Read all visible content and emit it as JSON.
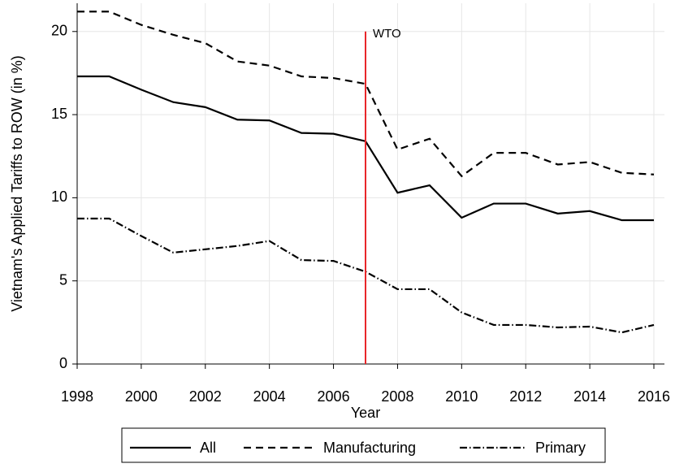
{
  "chart_data": {
    "type": "line",
    "x_label": "Year",
    "y_label": "Vietnam's Applied Tariffs to ROW (in %)",
    "x": [
      1998,
      1999,
      2000,
      2001,
      2002,
      2003,
      2004,
      2005,
      2006,
      2007,
      2008,
      2009,
      2010,
      2011,
      2012,
      2013,
      2014,
      2015,
      2016
    ],
    "series": [
      {
        "name": "All",
        "color": "#000000",
        "dash": "none",
        "values": [
          17.3,
          17.3,
          16.5,
          15.75,
          15.45,
          14.7,
          14.65,
          13.9,
          13.85,
          13.4,
          10.3,
          10.75,
          8.8,
          9.65,
          9.65,
          9.05,
          9.2,
          8.65,
          8.65
        ]
      },
      {
        "name": "Manufacturing",
        "color": "#000000",
        "dash": "9,6",
        "values": [
          21.2,
          21.2,
          20.4,
          19.8,
          19.3,
          18.2,
          17.95,
          17.3,
          17.2,
          16.85,
          12.9,
          13.55,
          11.3,
          12.7,
          12.7,
          12.0,
          12.15,
          11.5,
          11.4
        ]
      },
      {
        "name": "Primary",
        "color": "#000000",
        "dash": "9,3,1.5,3",
        "values": [
          8.75,
          8.75,
          7.7,
          6.7,
          6.9,
          7.1,
          7.4,
          6.25,
          6.2,
          5.55,
          4.5,
          4.5,
          3.1,
          2.35,
          2.35,
          2.2,
          2.25,
          1.9,
          2.35
        ]
      }
    ],
    "vline": {
      "x": 2007,
      "label": "WTO",
      "color": "#e8262a"
    },
    "xlim": [
      1998,
      2016
    ],
    "xticks": [
      1998,
      2000,
      2002,
      2004,
      2006,
      2008,
      2010,
      2012,
      2014,
      2016
    ],
    "ylim": [
      0,
      21.7
    ],
    "yticks": [
      0,
      5,
      10,
      15,
      20
    ],
    "grid": true
  }
}
